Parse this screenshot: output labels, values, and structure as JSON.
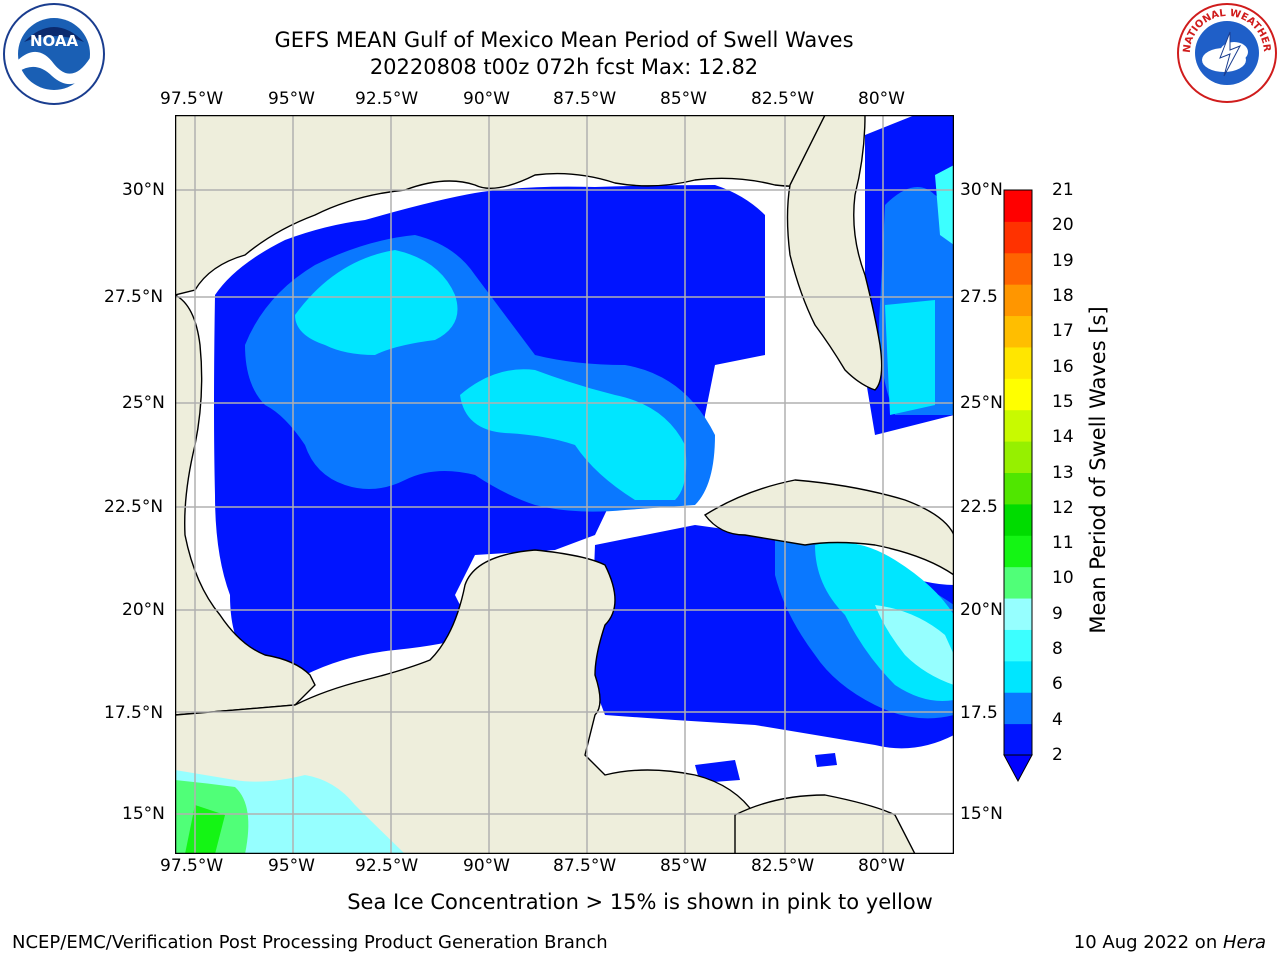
{
  "title": {
    "line1": "GEFS MEAN Gulf of Mexico Mean Period of Swell Waves",
    "line2": "20220808 t00z 072h fcst   Max: 12.82"
  },
  "map": {
    "lon_labels": [
      "97.5°W",
      "95°W",
      "92.5°W",
      "90°W",
      "87.5°W",
      "85°W",
      "82.5°W",
      "80°W"
    ],
    "lat_labels_left": [
      "30°N",
      "27.5°N",
      "25°N",
      "22.5°N",
      "20°N",
      "17.5°N",
      "15°N"
    ],
    "lat_labels_right": [
      "30°N",
      "27.5",
      "25°N",
      "22.5",
      "20°N",
      "17.5",
      "15°N"
    ],
    "colors": {
      "land": "#eeeedc",
      "coast": "#000000",
      "grid": "#b0b0b0"
    }
  },
  "colorbar": {
    "label": "Mean Period of Swell Waves [s]",
    "ticks": [
      "2",
      "4",
      "6",
      "8",
      "9",
      "10",
      "11",
      "12",
      "13",
      "14",
      "15",
      "16",
      "17",
      "18",
      "19",
      "20",
      "21"
    ],
    "colors": [
      "#0014ff",
      "#0a78ff",
      "#00e6ff",
      "#3cffff",
      "#96ffff",
      "#50ff78",
      "#14f514",
      "#00dc00",
      "#50e600",
      "#96f000",
      "#c8fa00",
      "#ffff00",
      "#ffe600",
      "#ffbe00",
      "#ff9600",
      "#ff6400",
      "#ff3200",
      "#ff0000"
    ],
    "extend_color": "#0000ff"
  },
  "logos": {
    "left": "NOAA",
    "right": "NATIONAL WEATHER SERVICE"
  },
  "footer": {
    "note": "Sea Ice Concentration > 15% is shown in pink to yellow",
    "credit": "NCEP/EMC/Verification Post Processing Product Generation Branch",
    "date": "10 Aug 2022 on ",
    "host": "Hera"
  }
}
